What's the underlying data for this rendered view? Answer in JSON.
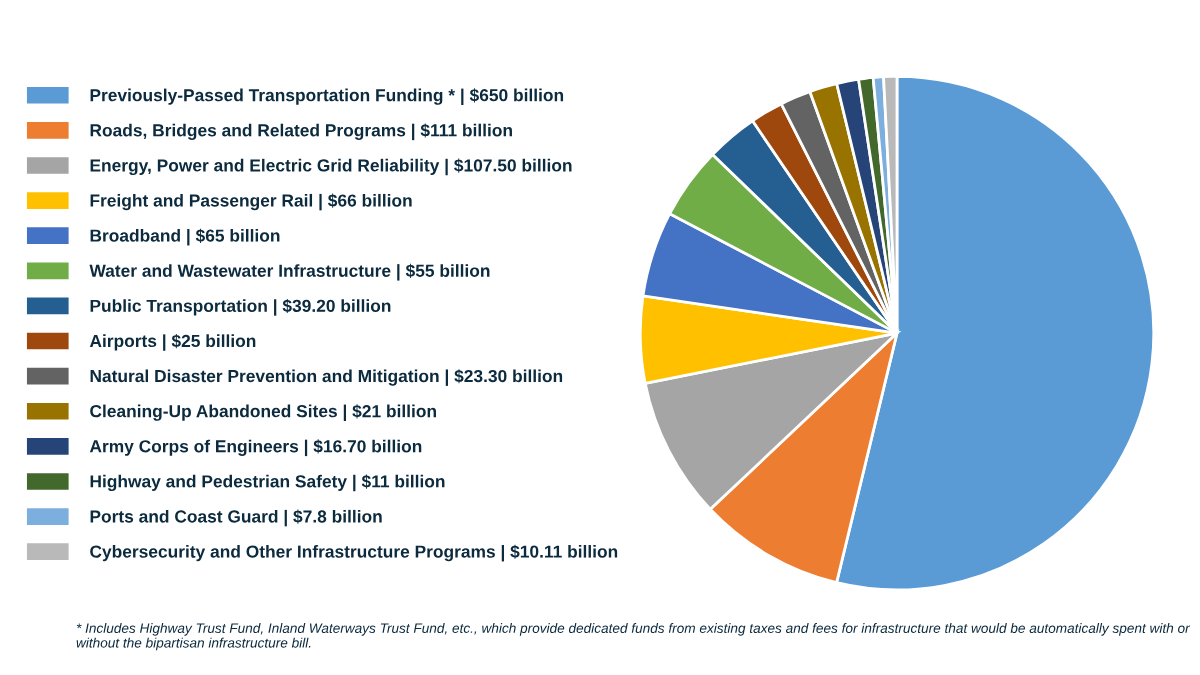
{
  "chart_data": {
    "type": "pie",
    "categories": [
      "Previously-Passed Transportation Funding * | $650 billion",
      "Roads, Bridges and Related Programs | $111 billion",
      "Energy, Power and Electric Grid Reliability | $107.50 billion",
      "Freight and Passenger Rail | $66 billion",
      "Broadband | $65 billion",
      "Water and Wastewater Infrastructure | $55 billion",
      "Public Transportation | $39.20 billion",
      "Airports | $25 billion",
      "Natural Disaster Prevention and Mitigation | $23.30 billion",
      "Cleaning-Up Abandoned Sites | $21 billion",
      "Army Corps of Engineers | $16.70 billion",
      "Highway and Pedestrian Safety | $11 billion",
      "Ports and Coast Guard | $7.8 billion",
      "Cybersecurity and Other Infrastructure Programs | $10.11 billion"
    ],
    "values": [
      650,
      111,
      107.5,
      66,
      65,
      55,
      39.2,
      25,
      23.3,
      21,
      16.7,
      11,
      7.8,
      10.11
    ],
    "colors": [
      "#5b9bd5",
      "#ed7d31",
      "#a5a5a5",
      "#ffc000",
      "#4472c4",
      "#70ad47",
      "#255e91",
      "#9e480e",
      "#636363",
      "#997300",
      "#264478",
      "#43682b",
      "#7cafdd",
      "#b9b9b9"
    ],
    "legend": "left",
    "annotations": [
      "* Includes Highway Trust Fund, Inland Waterways Trust Fund, etc., which provide dedicated funds from existing taxes and fees for infrastructure that would be automatically spent with or without the bipartisan infrastructure bill."
    ]
  }
}
